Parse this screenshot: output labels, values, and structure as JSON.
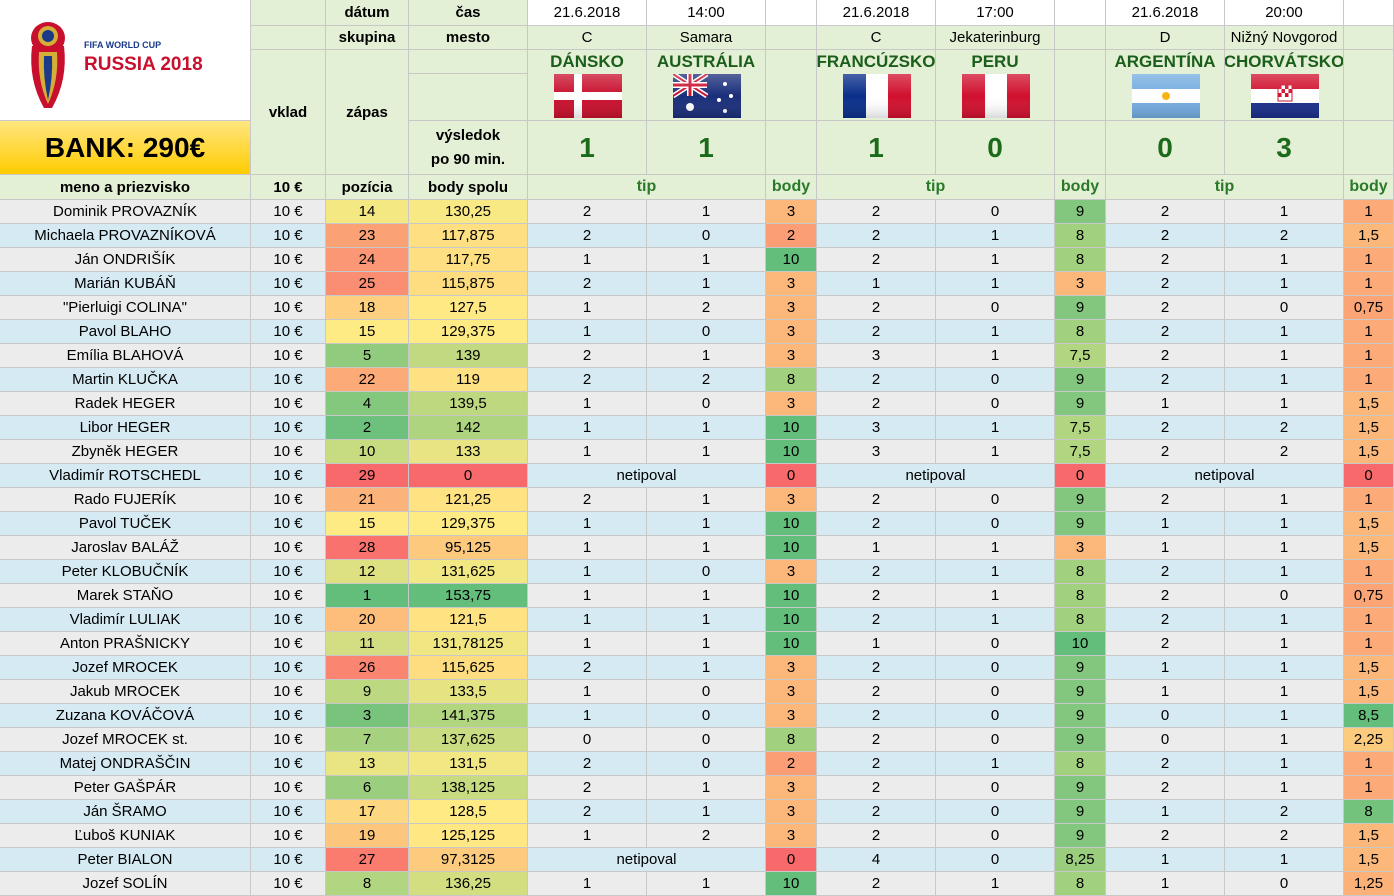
{
  "logo": {
    "line1": "FIFA WORLD CUP",
    "line2": "RUSSIA 2018"
  },
  "bank": "BANK: 290€",
  "labels": {
    "datum": "dátum",
    "cas": "čas",
    "skupina": "skupina",
    "mesto": "mesto",
    "vklad": "vklad",
    "zapas": "zápas",
    "vysledok1": "výsledok",
    "vysledok2": "po 90 min.",
    "meno": "meno a priezvisko",
    "vklad_val": "10 €",
    "pozicia": "pozícia",
    "body_spolu": "body spolu",
    "tip": "tip",
    "body": "body"
  },
  "matches": [
    {
      "date": "21.6.2018",
      "time": "14:00",
      "group": "C",
      "city": "Samara",
      "home": "DÁNSKO",
      "away": "AUSTRÁLIA",
      "home_flag": "denmark-flag",
      "away_flag": "australia-flag",
      "home_score": "1",
      "away_score": "1"
    },
    {
      "date": "21.6.2018",
      "time": "17:00",
      "group": "C",
      "city": "Jekaterinburg",
      "home": "FRANCÚZSKO",
      "away": "PERU",
      "home_flag": "france-flag",
      "away_flag": "peru-flag",
      "home_score": "1",
      "away_score": "0"
    },
    {
      "date": "21.6.2018",
      "time": "20:00",
      "group": "D",
      "city": "Nižný Novgorod",
      "home": "ARGENTÍNA",
      "away": "CHORVÁTSKO",
      "home_flag": "argentina-flag",
      "away_flag": "croatia-flag",
      "home_score": "0",
      "away_score": "3"
    }
  ],
  "colors": {
    "header_green": "#e3f0d6",
    "row_gray": "#ececec",
    "row_blue": "#d6eaf3",
    "score_green": "#1b6b1b",
    "bank_yellow": "#ffcc00"
  },
  "rows": [
    {
      "name": "Dominik PROVAZNÍK",
      "vklad": "10 €",
      "poz": "14",
      "body": "130,25",
      "t": [
        [
          "2",
          "1",
          "3"
        ],
        [
          "2",
          "0",
          "9"
        ],
        [
          "2",
          "1",
          "1"
        ]
      ]
    },
    {
      "name": "Michaela PROVAZNÍKOVÁ",
      "vklad": "10 €",
      "poz": "23",
      "body": "117,875",
      "t": [
        [
          "2",
          "0",
          "2"
        ],
        [
          "2",
          "1",
          "8"
        ],
        [
          "2",
          "2",
          "1,5"
        ]
      ]
    },
    {
      "name": "Ján ONDRIŠÍK",
      "vklad": "10 €",
      "poz": "24",
      "body": "117,75",
      "t": [
        [
          "1",
          "1",
          "10"
        ],
        [
          "2",
          "1",
          "8"
        ],
        [
          "2",
          "1",
          "1"
        ]
      ]
    },
    {
      "name": "Marián KUBÁŇ",
      "vklad": "10 €",
      "poz": "25",
      "body": "115,875",
      "t": [
        [
          "2",
          "1",
          "3"
        ],
        [
          "1",
          "1",
          "3"
        ],
        [
          "2",
          "1",
          "1"
        ]
      ]
    },
    {
      "name": "\"Pierluigi COLINA\"",
      "vklad": "10 €",
      "poz": "18",
      "body": "127,5",
      "t": [
        [
          "1",
          "2",
          "3"
        ],
        [
          "2",
          "0",
          "9"
        ],
        [
          "2",
          "0",
          "0,75"
        ]
      ]
    },
    {
      "name": "Pavol BLAHO",
      "vklad": "10 €",
      "poz": "15",
      "body": "129,375",
      "t": [
        [
          "1",
          "0",
          "3"
        ],
        [
          "2",
          "1",
          "8"
        ],
        [
          "2",
          "1",
          "1"
        ]
      ]
    },
    {
      "name": "Emília BLAHOVÁ",
      "vklad": "10 €",
      "poz": "5",
      "body": "139",
      "t": [
        [
          "2",
          "1",
          "3"
        ],
        [
          "3",
          "1",
          "7,5"
        ],
        [
          "2",
          "1",
          "1"
        ]
      ]
    },
    {
      "name": "Martin KLUČKA",
      "vklad": "10 €",
      "poz": "22",
      "body": "119",
      "t": [
        [
          "2",
          "2",
          "8"
        ],
        [
          "2",
          "0",
          "9"
        ],
        [
          "2",
          "1",
          "1"
        ]
      ]
    },
    {
      "name": "Radek HEGER",
      "vklad": "10 €",
      "poz": "4",
      "body": "139,5",
      "t": [
        [
          "1",
          "0",
          "3"
        ],
        [
          "2",
          "0",
          "9"
        ],
        [
          "1",
          "1",
          "1,5"
        ]
      ]
    },
    {
      "name": "Libor HEGER",
      "vklad": "10 €",
      "poz": "2",
      "body": "142",
      "t": [
        [
          "1",
          "1",
          "10"
        ],
        [
          "3",
          "1",
          "7,5"
        ],
        [
          "2",
          "2",
          "1,5"
        ]
      ]
    },
    {
      "name": "Zbyněk HEGER",
      "vklad": "10 €",
      "poz": "10",
      "body": "133",
      "t": [
        [
          "1",
          "1",
          "10"
        ],
        [
          "3",
          "1",
          "7,5"
        ],
        [
          "2",
          "2",
          "1,5"
        ]
      ]
    },
    {
      "name": "Vladimír ROTSCHEDL",
      "vklad": "10 €",
      "poz": "29",
      "body": "0",
      "np": "netipoval",
      "t": [
        [
          "",
          "",
          "0"
        ],
        [
          "",
          "",
          "0"
        ],
        [
          "",
          "",
          "0"
        ]
      ]
    },
    {
      "name": "Rado FUJERÍK",
      "vklad": "10 €",
      "poz": "21",
      "body": "121,25",
      "t": [
        [
          "2",
          "1",
          "3"
        ],
        [
          "2",
          "0",
          "9"
        ],
        [
          "2",
          "1",
          "1"
        ]
      ]
    },
    {
      "name": "Pavol TUČEK",
      "vklad": "10 €",
      "poz": "15",
      "body": "129,375",
      "t": [
        [
          "1",
          "1",
          "10"
        ],
        [
          "2",
          "0",
          "9"
        ],
        [
          "1",
          "1",
          "1,5"
        ]
      ]
    },
    {
      "name": "Jaroslav BALÁŽ",
      "vklad": "10 €",
      "poz": "28",
      "body": "95,125",
      "t": [
        [
          "1",
          "1",
          "10"
        ],
        [
          "1",
          "1",
          "3"
        ],
        [
          "1",
          "1",
          "1,5"
        ]
      ]
    },
    {
      "name": "Peter KLOBUČNÍK",
      "vklad": "10 €",
      "poz": "12",
      "body": "131,625",
      "t": [
        [
          "1",
          "0",
          "3"
        ],
        [
          "2",
          "1",
          "8"
        ],
        [
          "2",
          "1",
          "1"
        ]
      ]
    },
    {
      "name": "Marek STAŇO",
      "vklad": "10 €",
      "poz": "1",
      "body": "153,75",
      "t": [
        [
          "1",
          "1",
          "10"
        ],
        [
          "2",
          "1",
          "8"
        ],
        [
          "2",
          "0",
          "0,75"
        ]
      ]
    },
    {
      "name": "Vladimír LULIAK",
      "vklad": "10 €",
      "poz": "20",
      "body": "121,5",
      "t": [
        [
          "1",
          "1",
          "10"
        ],
        [
          "2",
          "1",
          "8"
        ],
        [
          "2",
          "1",
          "1"
        ]
      ]
    },
    {
      "name": "Anton PRAŠNICKY",
      "vklad": "10 €",
      "poz": "11",
      "body": "131,78125",
      "t": [
        [
          "1",
          "1",
          "10"
        ],
        [
          "1",
          "0",
          "10"
        ],
        [
          "2",
          "1",
          "1"
        ]
      ]
    },
    {
      "name": "Jozef MROCEK",
      "vklad": "10 €",
      "poz": "26",
      "body": "115,625",
      "t": [
        [
          "2",
          "1",
          "3"
        ],
        [
          "2",
          "0",
          "9"
        ],
        [
          "1",
          "1",
          "1,5"
        ]
      ]
    },
    {
      "name": "Jakub MROCEK",
      "vklad": "10 €",
      "poz": "9",
      "body": "133,5",
      "t": [
        [
          "1",
          "0",
          "3"
        ],
        [
          "2",
          "0",
          "9"
        ],
        [
          "1",
          "1",
          "1,5"
        ]
      ]
    },
    {
      "name": "Zuzana KOVÁČOVÁ",
      "vklad": "10 €",
      "poz": "3",
      "body": "141,375",
      "t": [
        [
          "1",
          "0",
          "3"
        ],
        [
          "2",
          "0",
          "9"
        ],
        [
          "0",
          "1",
          "8,5"
        ]
      ]
    },
    {
      "name": "Jozef MROCEK st.",
      "vklad": "10 €",
      "poz": "7",
      "body": "137,625",
      "t": [
        [
          "0",
          "0",
          "8"
        ],
        [
          "2",
          "0",
          "9"
        ],
        [
          "0",
          "1",
          "2,25"
        ]
      ]
    },
    {
      "name": "Matej ONDRAŠČIN",
      "vklad": "10 €",
      "poz": "13",
      "body": "131,5",
      "t": [
        [
          "2",
          "0",
          "2"
        ],
        [
          "2",
          "1",
          "8"
        ],
        [
          "2",
          "1",
          "1"
        ]
      ]
    },
    {
      "name": "Peter GAŠPÁR",
      "vklad": "10 €",
      "poz": "6",
      "body": "138,125",
      "t": [
        [
          "2",
          "1",
          "3"
        ],
        [
          "2",
          "0",
          "9"
        ],
        [
          "2",
          "1",
          "1"
        ]
      ]
    },
    {
      "name": "Ján ŠRAMO",
      "vklad": "10 €",
      "poz": "17",
      "body": "128,5",
      "t": [
        [
          "2",
          "1",
          "3"
        ],
        [
          "2",
          "0",
          "9"
        ],
        [
          "1",
          "2",
          "8"
        ]
      ]
    },
    {
      "name": "Ľuboš KUNIAK",
      "vklad": "10 €",
      "poz": "19",
      "body": "125,125",
      "t": [
        [
          "1",
          "2",
          "3"
        ],
        [
          "2",
          "0",
          "9"
        ],
        [
          "2",
          "2",
          "1,5"
        ]
      ]
    },
    {
      "name": "Peter BIALON",
      "vklad": "10 €",
      "poz": "27",
      "body": "97,3125",
      "np0": "netipoval",
      "t": [
        [
          "",
          "",
          "0"
        ],
        [
          "4",
          "0",
          "8,25"
        ],
        [
          "1",
          "1",
          "1,5"
        ]
      ]
    },
    {
      "name": "Jozef SOLÍN",
      "vklad": "10 €",
      "poz": "8",
      "body": "136,25",
      "t": [
        [
          "1",
          "1",
          "10"
        ],
        [
          "2",
          "1",
          "8"
        ],
        [
          "1",
          "0",
          "1,25"
        ]
      ]
    }
  ]
}
